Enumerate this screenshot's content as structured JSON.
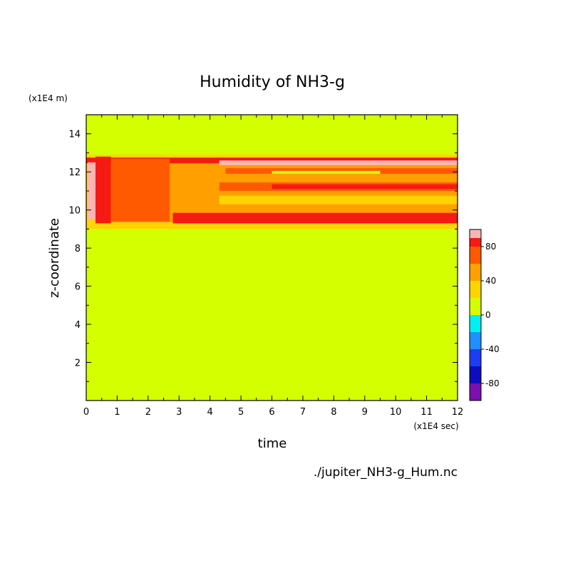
{
  "chart_data": {
    "type": "heatmap",
    "title": "Humidity of NH3-g",
    "xlabel": "time",
    "ylabel": "z-coordinate",
    "x_unit": "(x1E4 sec)",
    "y_unit": "(x1E4 m)",
    "xlim": [
      0,
      12
    ],
    "ylim": [
      0,
      15
    ],
    "x_ticks": [
      "0",
      "1",
      "2",
      "3",
      "4",
      "5",
      "6",
      "7",
      "8",
      "9",
      "10",
      "11",
      "12"
    ],
    "y_ticks": [
      "2",
      "4",
      "6",
      "8",
      "10",
      "12",
      "14"
    ],
    "colorbar": {
      "range": [
        -100,
        100
      ],
      "tick_labels": [
        "80",
        "40",
        "0",
        "-40",
        "-80"
      ],
      "levels": [
        {
          "from": -100,
          "to": -80,
          "color": "#7b0fb0"
        },
        {
          "from": -80,
          "to": -60,
          "color": "#0d0dbf"
        },
        {
          "from": -60,
          "to": -40,
          "color": "#1e3cf0"
        },
        {
          "from": -40,
          "to": -20,
          "color": "#1e90ff"
        },
        {
          "from": -20,
          "to": 0,
          "color": "#00f0f0"
        },
        {
          "from": 0,
          "to": 20,
          "color": "#d4ff00"
        },
        {
          "from": 20,
          "to": 40,
          "color": "#ffd400"
        },
        {
          "from": 40,
          "to": 60,
          "color": "#ffa000"
        },
        {
          "from": 60,
          "to": 80,
          "color": "#ff5a00"
        },
        {
          "from": 80,
          "to": 90,
          "color": "#f51a14"
        },
        {
          "from": 90,
          "to": 100,
          "color": "#ffb4b4"
        }
      ]
    },
    "background_value": 0,
    "regions": [
      {
        "t": [
          0,
          12
        ],
        "z": [
          9.0,
          12.9
        ],
        "value": 30
      },
      {
        "t": [
          0.3,
          12
        ],
        "z": [
          9.35,
          12.75
        ],
        "value": 50
      },
      {
        "t": [
          0,
          12
        ],
        "z": [
          12.45,
          12.75
        ],
        "value": 85
      },
      {
        "t": [
          4.3,
          12
        ],
        "z": [
          12.35,
          12.6
        ],
        "value": 95
      },
      {
        "t": [
          0.05,
          0.3
        ],
        "z": [
          9.5,
          12.5
        ],
        "value": 95
      },
      {
        "t": [
          0.3,
          0.8
        ],
        "z": [
          9.3,
          12.8
        ],
        "value": 85
      },
      {
        "t": [
          0.8,
          2.7
        ],
        "z": [
          9.4,
          12.7
        ],
        "value": 70
      },
      {
        "t": [
          2.8,
          12
        ],
        "z": [
          9.3,
          9.85
        ],
        "value": 85
      },
      {
        "t": [
          4.3,
          12
        ],
        "z": [
          11.0,
          11.45
        ],
        "value": 70
      },
      {
        "t": [
          6.0,
          12
        ],
        "z": [
          11.1,
          11.35
        ],
        "value": 85
      },
      {
        "t": [
          4.5,
          12
        ],
        "z": [
          11.9,
          12.2
        ],
        "value": 65
      },
      {
        "t": [
          3.0,
          4.3
        ],
        "z": [
          10.4,
          12.4
        ],
        "value": 55
      },
      {
        "t": [
          4.3,
          12
        ],
        "z": [
          10.3,
          10.75
        ],
        "value": 35
      },
      {
        "t": [
          6.0,
          9.5
        ],
        "z": [
          11.9,
          12.05
        ],
        "value": 10
      }
    ]
  },
  "source_file": "./jupiter_NH3-g_Hum.nc"
}
